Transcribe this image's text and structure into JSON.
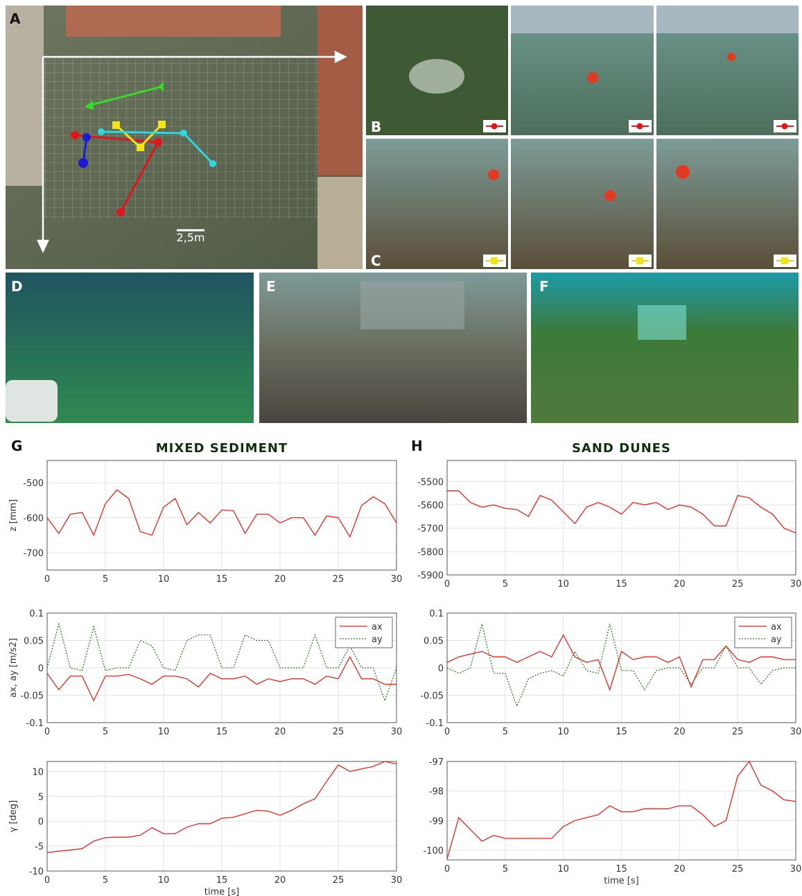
{
  "photos": [
    {
      "label": "A"
    },
    {
      "label": "B"
    },
    {
      "label": "C"
    },
    {
      "label": "D"
    },
    {
      "label": "E"
    },
    {
      "label": "F"
    }
  ],
  "map": {
    "scale_label": "2,5m"
  },
  "chart_data": [
    {
      "type": "line",
      "panel_label": "G",
      "title": "MIXED SEDIMENT",
      "y_label": "z [mm]",
      "x": [
        0,
        1,
        2,
        3,
        4,
        5,
        6,
        7,
        8,
        9,
        10,
        11,
        12,
        13,
        14,
        15,
        16,
        17,
        18,
        19,
        20,
        21,
        22,
        23,
        24,
        25,
        26,
        27,
        28,
        29,
        30
      ],
      "series": [
        {
          "color": "#e8221b",
          "values": [
            -600,
            -645,
            -590,
            -585,
            -650,
            -560,
            -520,
            -545,
            -640,
            -650,
            -570,
            -545,
            -620,
            -585,
            -615,
            -578,
            -580,
            -645,
            -590,
            -590,
            -615,
            -600,
            -600,
            -650,
            -595,
            -600,
            -655,
            -565,
            -540,
            -560,
            -615
          ]
        }
      ],
      "xlim": [
        0,
        30
      ],
      "xticks": [
        0,
        5,
        10,
        15,
        20,
        25,
        30
      ],
      "ylim": [
        -750,
        -436
      ],
      "yticks": [
        -500,
        -600,
        -700
      ],
      "grid": true
    },
    {
      "type": "line",
      "panel_label": "H",
      "title": "SAND DUNES",
      "x": [
        0,
        1,
        2,
        3,
        4,
        5,
        6,
        7,
        8,
        9,
        10,
        11,
        12,
        13,
        14,
        15,
        16,
        17,
        18,
        19,
        20,
        21,
        22,
        23,
        24,
        25,
        26,
        27,
        28,
        29,
        30
      ],
      "series": [
        {
          "color": "#e8221b",
          "values": [
            -5540,
            -5540,
            -5590,
            -5610,
            -5600,
            -5615,
            -5620,
            -5650,
            -5560,
            -5580,
            -5630,
            -5680,
            -5610,
            -5590,
            -5610,
            -5640,
            -5590,
            -5600,
            -5590,
            -5620,
            -5600,
            -5610,
            -5640,
            -5690,
            -5690,
            -5560,
            -5570,
            -5610,
            -5640,
            -5700,
            -5720
          ]
        }
      ],
      "xlim": [
        0,
        30
      ],
      "xticks": [
        0,
        5,
        10,
        15,
        20,
        25,
        30
      ],
      "ylim": [
        -5900,
        -5410
      ],
      "yticks": [
        -5500,
        -5600,
        -5700,
        -5800,
        -5900
      ],
      "grid": true
    },
    {
      "type": "line",
      "y_label": "ax, ay [m/s2]",
      "legend": "upper right",
      "x": [
        0,
        1,
        2,
        3,
        4,
        5,
        6,
        7,
        8,
        9,
        10,
        11,
        12,
        13,
        14,
        15,
        16,
        17,
        18,
        19,
        20,
        21,
        22,
        23,
        24,
        25,
        26,
        27,
        28,
        29,
        30
      ],
      "series": [
        {
          "name": "ax",
          "color": "#e8221b",
          "dash": "solid",
          "values": [
            -0.01,
            -0.04,
            -0.015,
            -0.015,
            -0.06,
            -0.015,
            -0.015,
            -0.012,
            -0.02,
            -0.03,
            -0.015,
            -0.015,
            -0.02,
            -0.035,
            -0.01,
            -0.02,
            -0.02,
            -0.015,
            -0.03,
            -0.02,
            -0.025,
            -0.02,
            -0.02,
            -0.03,
            -0.015,
            -0.02,
            0.02,
            -0.02,
            -0.02,
            -0.03,
            -0.03
          ]
        },
        {
          "name": "ay",
          "color": "#2e7d22",
          "dash": "dotted",
          "values": [
            0,
            0.08,
            0,
            -0.005,
            0.075,
            -0.005,
            0,
            0,
            0.05,
            0.04,
            0,
            -0.005,
            0.05,
            0.06,
            0.06,
            0,
            0,
            0.06,
            0.05,
            0.05,
            0,
            0,
            0,
            0.06,
            0,
            0,
            0.04,
            0,
            0,
            -0.06,
            0
          ]
        }
      ],
      "xlim": [
        0,
        30
      ],
      "xticks": [
        0,
        5,
        10,
        15,
        20,
        25,
        30
      ],
      "ylim": [
        -0.1,
        0.1
      ],
      "yticks": [
        -0.1,
        -0.05,
        0,
        0.05,
        0.1
      ],
      "grid": true
    },
    {
      "type": "line",
      "legend": "upper right",
      "x": [
        0,
        1,
        2,
        3,
        4,
        5,
        6,
        7,
        8,
        9,
        10,
        11,
        12,
        13,
        14,
        15,
        16,
        17,
        18,
        19,
        20,
        21,
        22,
        23,
        24,
        25,
        26,
        27,
        28,
        29,
        30
      ],
      "series": [
        {
          "name": "ax",
          "color": "#e8221b",
          "dash": "solid",
          "values": [
            0.01,
            0.02,
            0.025,
            0.03,
            0.02,
            0.02,
            0.01,
            0.02,
            0.03,
            0.02,
            0.06,
            0.02,
            0.01,
            0.015,
            -0.04,
            0.03,
            0.015,
            0.02,
            0.02,
            0.01,
            0.02,
            -0.035,
            0.015,
            0.015,
            0.04,
            0.015,
            0.01,
            0.02,
            0.02,
            0.015,
            0.015
          ]
        },
        {
          "name": "ay",
          "color": "#2e7d22",
          "dash": "dotted",
          "values": [
            0,
            -0.01,
            0,
            0.08,
            -0.01,
            -0.01,
            -0.07,
            -0.02,
            -0.01,
            -0.005,
            -0.015,
            0.03,
            -0.005,
            -0.01,
            0.08,
            -0.005,
            -0.005,
            -0.04,
            -0.005,
            0,
            0,
            -0.03,
            0,
            0,
            0.04,
            0,
            0,
            -0.03,
            -0.005,
            0,
            0
          ]
        }
      ],
      "xlim": [
        0,
        30
      ],
      "xticks": [
        0,
        5,
        10,
        15,
        20,
        25,
        30
      ],
      "ylim": [
        -0.1,
        0.1
      ],
      "yticks": [
        -0.1,
        -0.05,
        0,
        0.05,
        0.1
      ],
      "grid": true
    },
    {
      "type": "line",
      "y_label": "γ [deg]",
      "x_label": "time [s]",
      "x": [
        0,
        1,
        2,
        3,
        4,
        5,
        6,
        7,
        8,
        9,
        10,
        11,
        12,
        13,
        14,
        15,
        16,
        17,
        18,
        19,
        20,
        21,
        22,
        23,
        24,
        25,
        26,
        27,
        28,
        29,
        30
      ],
      "series": [
        {
          "color": "#e8221b",
          "values": [
            -6.3,
            -6,
            -5.8,
            -5.5,
            -4,
            -3.3,
            -3.2,
            -3.2,
            -2.8,
            -1.3,
            -2.5,
            -2.5,
            -1.2,
            -0.5,
            -0.5,
            0.6,
            0.8,
            1.5,
            2.2,
            2,
            1.2,
            2.2,
            3.5,
            4.5,
            8,
            11.3,
            10,
            10.5,
            11,
            12,
            11.5
          ]
        }
      ],
      "xlim": [
        0,
        30
      ],
      "xticks": [
        0,
        5,
        10,
        15,
        20,
        25,
        30
      ],
      "ylim": [
        -10,
        12
      ],
      "yticks": [
        -10,
        -5,
        0,
        5,
        10
      ],
      "grid": true
    },
    {
      "type": "line",
      "x_label": "time [s]",
      "x": [
        0,
        1,
        2,
        3,
        4,
        5,
        6,
        7,
        8,
        9,
        10,
        11,
        12,
        13,
        14,
        15,
        16,
        17,
        18,
        19,
        20,
        21,
        22,
        23,
        24,
        25,
        26,
        27,
        28,
        29,
        30
      ],
      "series": [
        {
          "color": "#e8221b",
          "values": [
            -100.3,
            -98.9,
            -99.3,
            -99.7,
            -99.5,
            -99.6,
            -99.6,
            -99.6,
            -99.6,
            -99.6,
            -99.2,
            -99,
            -98.9,
            -98.8,
            -98.5,
            -98.7,
            -98.7,
            -98.6,
            -98.6,
            -98.6,
            -98.5,
            -98.5,
            -98.8,
            -99.2,
            -99,
            -97.5,
            -97,
            -97.8,
            -98,
            -98.3,
            -98.35
          ]
        }
      ],
      "xlim": [
        0,
        30
      ],
      "xticks": [
        0,
        5,
        10,
        15,
        20,
        25,
        30
      ],
      "ylim": [
        -100.33,
        -97
      ],
      "yticks": [
        -97,
        -98,
        -99,
        -100
      ],
      "grid": true
    }
  ]
}
